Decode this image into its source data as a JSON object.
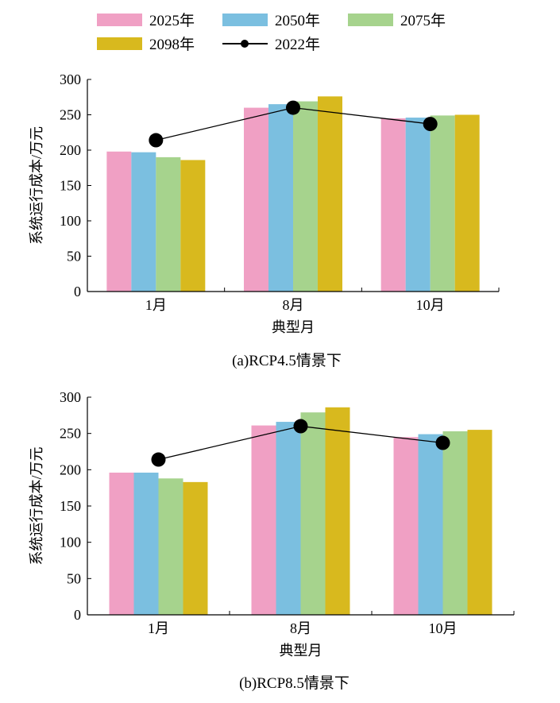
{
  "legend": [
    {
      "label": "2025年",
      "type": "bar",
      "color": "#f0a0c4"
    },
    {
      "label": "2050年",
      "type": "bar",
      "color": "#7bbfe0"
    },
    {
      "label": "2075年",
      "type": "bar",
      "color": "#a6d38d"
    },
    {
      "label": "2098年",
      "type": "bar",
      "color": "#d8b91e"
    },
    {
      "label": "2022年",
      "type": "line-marker",
      "color": "#000000"
    }
  ],
  "chart_data": [
    {
      "type": "bar",
      "title": "(a)RCP4.5情景下",
      "xlabel": "典型月",
      "ylabel": "系统运行成本/万元",
      "categories": [
        "1月",
        "8月",
        "10月"
      ],
      "ylim": [
        0,
        300
      ],
      "yticks": [
        0,
        50,
        100,
        150,
        200,
        250,
        300
      ],
      "series": [
        {
          "name": "2025年",
          "values": [
            198,
            260,
            245
          ]
        },
        {
          "name": "2050年",
          "values": [
            197,
            265,
            246
          ]
        },
        {
          "name": "2075年",
          "values": [
            190,
            269,
            249
          ]
        },
        {
          "name": "2098年",
          "values": [
            186,
            276,
            250
          ]
        }
      ],
      "line_series": {
        "name": "2022年",
        "values": [
          214,
          260,
          237
        ]
      }
    },
    {
      "type": "bar",
      "title": "(b)RCP8.5情景下",
      "xlabel": "典型月",
      "ylabel": "系统运行成本/万元",
      "categories": [
        "1月",
        "8月",
        "10月"
      ],
      "ylim": [
        0,
        300
      ],
      "yticks": [
        0,
        50,
        100,
        150,
        200,
        250,
        300
      ],
      "series": [
        {
          "name": "2025年",
          "values": [
            196,
            261,
            245
          ]
        },
        {
          "name": "2050年",
          "values": [
            196,
            266,
            249
          ]
        },
        {
          "name": "2075年",
          "values": [
            188,
            279,
            253
          ]
        },
        {
          "name": "2098年",
          "values": [
            183,
            286,
            255
          ]
        }
      ],
      "line_series": {
        "name": "2022年",
        "values": [
          214,
          260,
          237
        ]
      }
    }
  ]
}
